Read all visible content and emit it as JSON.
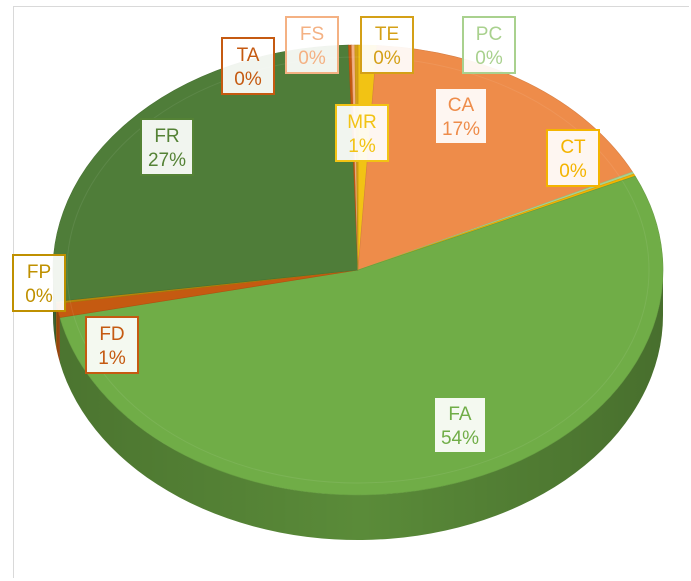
{
  "chart_data": {
    "type": "pie",
    "style": "3d-tilted",
    "title": "",
    "categories": [
      "MR",
      "CA",
      "PC",
      "CT",
      "FA",
      "FD",
      "FP",
      "FR",
      "TA",
      "FS",
      "TE"
    ],
    "values": [
      1,
      17,
      0,
      0,
      54,
      1,
      0,
      27,
      0,
      0,
      0
    ],
    "value_labels": [
      "1%",
      "17%",
      "0%",
      "0%",
      "54%",
      "1%",
      "0%",
      "27%",
      "0%",
      "0%",
      "0%"
    ],
    "colors": {
      "MR": "#f2c314",
      "CA": "#ee8c4a",
      "PC": "#a9d18e",
      "CT": "#f4b400",
      "FA": "#70ad47",
      "FD": "#c55a11",
      "FP": "#b8860b",
      "FR": "#4f7d39",
      "TA": "#c55a11",
      "FS": "#f4b183",
      "TE": "#d4a017"
    },
    "label_border_colors": {
      "MR": "#f2c314",
      "CA": "#ee8c4a",
      "PC": "#a9d18e",
      "CT": "#f4b400",
      "FA": "#70ad47",
      "FD": "#c55a11",
      "FP": "#bf9000",
      "FR": "#548235",
      "TA": "#c55a11",
      "FS": "#f4b183",
      "TE": "#d4a017"
    },
    "legend": "none",
    "grid": false
  }
}
